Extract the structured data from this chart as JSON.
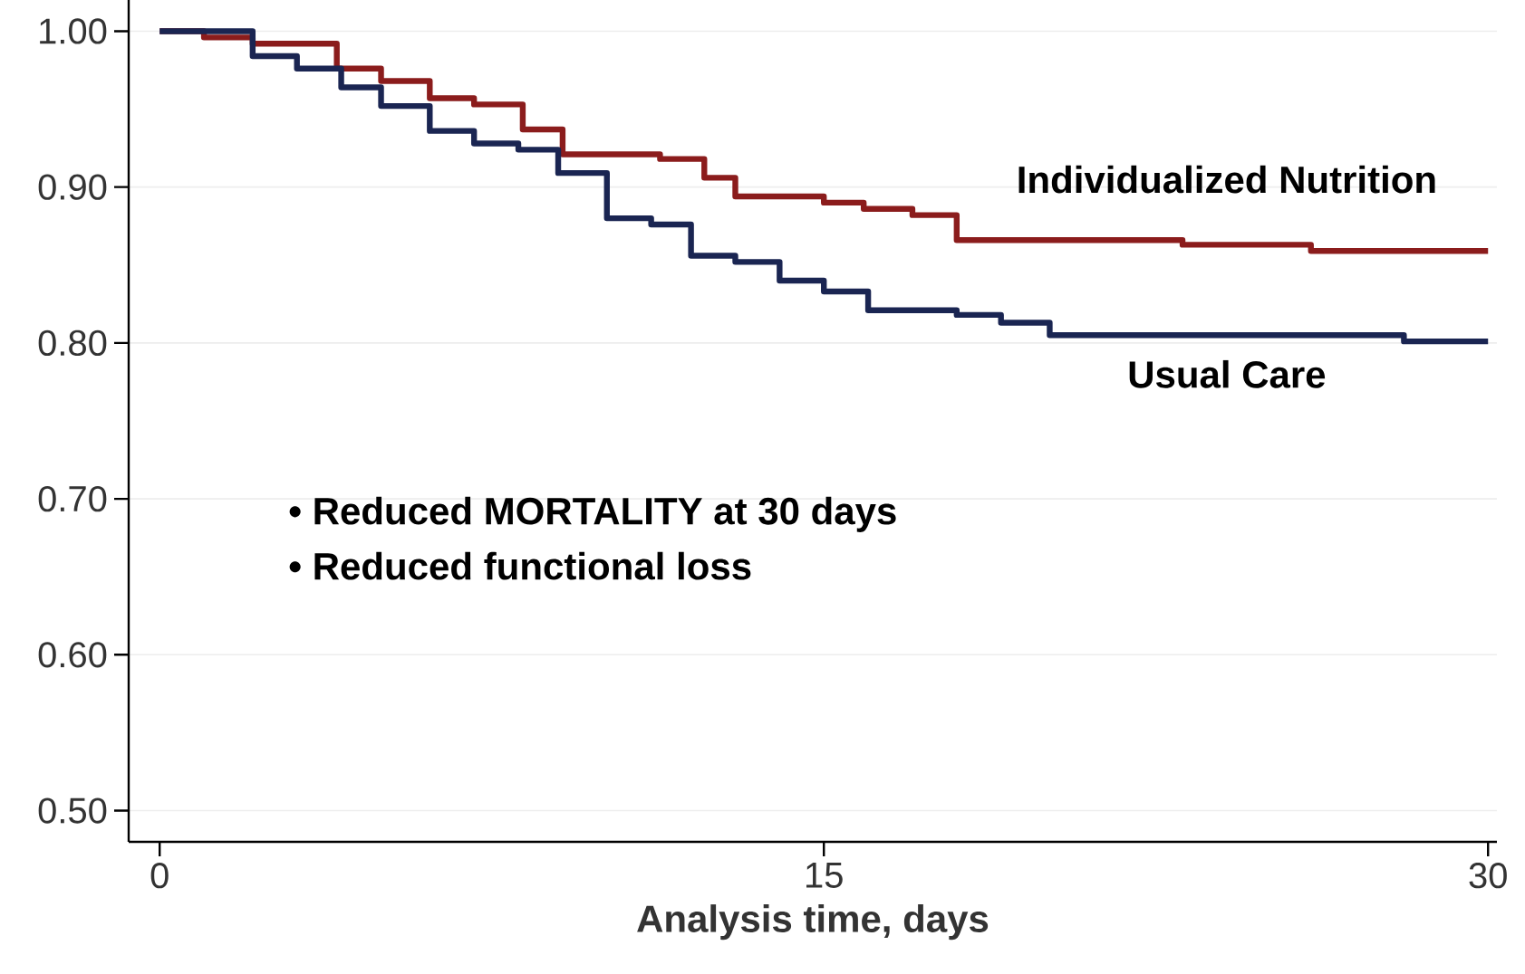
{
  "chart_data": {
    "type": "step",
    "xlabel": "Analysis time, days",
    "xlim": [
      -0.7,
      30.2
    ],
    "xticks": [
      0,
      15,
      30
    ],
    "ylim": [
      0.48,
      1.02
    ],
    "yticks": [
      {
        "value": 0.5,
        "label": "0.50"
      },
      {
        "value": 0.6,
        "label": "0.60"
      },
      {
        "value": 0.7,
        "label": "0.70"
      },
      {
        "value": 0.8,
        "label": "0.80"
      },
      {
        "value": 0.9,
        "label": "0.90"
      },
      {
        "value": 1.0,
        "label": "1.00"
      }
    ],
    "grid": "y",
    "legend": false,
    "series": [
      {
        "name": "Individualized Nutrition",
        "color": "#8b1c1c",
        "x": [
          0,
          1.0,
          2.1,
          4.0,
          5.0,
          6.1,
          7.1,
          8.2,
          9.1,
          11.3,
          12.3,
          13.0,
          15.0,
          15.9,
          17.0,
          18.0,
          23.1,
          26.0,
          30
        ],
        "values": [
          1.0,
          0.996,
          0.992,
          0.976,
          0.968,
          0.957,
          0.953,
          0.937,
          0.921,
          0.918,
          0.906,
          0.894,
          0.89,
          0.886,
          0.882,
          0.866,
          0.863,
          0.859,
          0.859
        ]
      },
      {
        "name": "Usual Care",
        "color": "#1a2552",
        "x": [
          0,
          2.1,
          3.1,
          4.1,
          5.0,
          6.1,
          7.1,
          8.1,
          9.0,
          10.1,
          11.1,
          12.0,
          13.0,
          14.0,
          15.0,
          16.0,
          18.0,
          19.0,
          20.1,
          28.1,
          30
        ],
        "values": [
          1.0,
          0.984,
          0.976,
          0.964,
          0.952,
          0.936,
          0.928,
          0.924,
          0.909,
          0.88,
          0.876,
          0.856,
          0.852,
          0.84,
          0.833,
          0.821,
          0.818,
          0.813,
          0.805,
          0.801,
          0.801
        ]
      }
    ],
    "annotations": [
      "• Reduced MORTALITY at 30 days",
      "• Reduced functional loss"
    ]
  }
}
